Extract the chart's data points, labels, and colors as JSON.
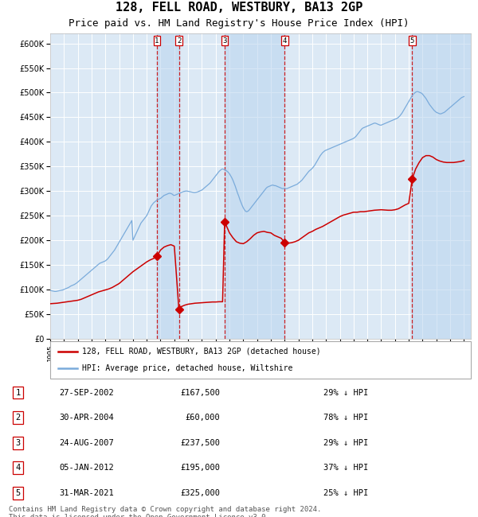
{
  "title": "128, FELL ROAD, WESTBURY, BA13 2GP",
  "subtitle": "Price paid vs. HM Land Registry's House Price Index (HPI)",
  "title_fontsize": 11,
  "subtitle_fontsize": 9,
  "xlim": [
    1995.0,
    2025.5
  ],
  "ylim": [
    0,
    620000
  ],
  "yticks": [
    0,
    50000,
    100000,
    150000,
    200000,
    250000,
    300000,
    350000,
    400000,
    450000,
    500000,
    550000,
    600000
  ],
  "background_color": "#ffffff",
  "plot_bg_color": "#dce9f5",
  "grid_color": "#ffffff",
  "hpi_color": "#7aabdb",
  "price_color": "#cc0000",
  "legend_label_price": "128, FELL ROAD, WESTBURY, BA13 2GP (detached house)",
  "legend_label_hpi": "HPI: Average price, detached house, Wiltshire",
  "transactions": [
    {
      "num": 1,
      "date_str": "27-SEP-2002",
      "date_x": 2002.74,
      "price": 167500,
      "pct": "29%"
    },
    {
      "num": 2,
      "date_str": "30-APR-2004",
      "date_x": 2004.33,
      "price": 60000,
      "pct": "78%"
    },
    {
      "num": 3,
      "date_str": "24-AUG-2007",
      "date_x": 2007.65,
      "price": 237500,
      "pct": "29%"
    },
    {
      "num": 4,
      "date_str": "05-JAN-2012",
      "date_x": 2012.01,
      "price": 195000,
      "pct": "37%"
    },
    {
      "num": 5,
      "date_str": "31-MAR-2021",
      "date_x": 2021.25,
      "price": 325000,
      "pct": "25%"
    }
  ],
  "footnote": "Contains HM Land Registry data © Crown copyright and database right 2024.\nThis data is licensed under the Open Government Licence v3.0.",
  "footnote_fontsize": 6.5,
  "hpi_data_x": [
    1995.0,
    1995.083,
    1995.167,
    1995.25,
    1995.333,
    1995.417,
    1995.5,
    1995.583,
    1995.667,
    1995.75,
    1995.833,
    1995.917,
    1996.0,
    1996.083,
    1996.167,
    1996.25,
    1996.333,
    1996.417,
    1996.5,
    1996.583,
    1996.667,
    1996.75,
    1996.833,
    1996.917,
    1997.0,
    1997.083,
    1997.167,
    1997.25,
    1997.333,
    1997.417,
    1997.5,
    1997.583,
    1997.667,
    1997.75,
    1997.833,
    1997.917,
    1998.0,
    1998.083,
    1998.167,
    1998.25,
    1998.333,
    1998.417,
    1998.5,
    1998.583,
    1998.667,
    1998.75,
    1998.833,
    1998.917,
    1999.0,
    1999.083,
    1999.167,
    1999.25,
    1999.333,
    1999.417,
    1999.5,
    1999.583,
    1999.667,
    1999.75,
    1999.833,
    1999.917,
    2000.0,
    2000.083,
    2000.167,
    2000.25,
    2000.333,
    2000.417,
    2000.5,
    2000.583,
    2000.667,
    2000.75,
    2000.833,
    2000.917,
    2001.0,
    2001.083,
    2001.167,
    2001.25,
    2001.333,
    2001.417,
    2001.5,
    2001.583,
    2001.667,
    2001.75,
    2001.833,
    2001.917,
    2002.0,
    2002.083,
    2002.167,
    2002.25,
    2002.333,
    2002.417,
    2002.5,
    2002.583,
    2002.667,
    2002.75,
    2002.833,
    2002.917,
    2003.0,
    2003.083,
    2003.167,
    2003.25,
    2003.333,
    2003.417,
    2003.5,
    2003.583,
    2003.667,
    2003.75,
    2003.833,
    2003.917,
    2004.0,
    2004.083,
    2004.167,
    2004.25,
    2004.333,
    2004.417,
    2004.5,
    2004.583,
    2004.667,
    2004.75,
    2004.833,
    2004.917,
    2005.0,
    2005.083,
    2005.167,
    2005.25,
    2005.333,
    2005.417,
    2005.5,
    2005.583,
    2005.667,
    2005.75,
    2005.833,
    2005.917,
    2006.0,
    2006.083,
    2006.167,
    2006.25,
    2006.333,
    2006.417,
    2006.5,
    2006.583,
    2006.667,
    2006.75,
    2006.833,
    2006.917,
    2007.0,
    2007.083,
    2007.167,
    2007.25,
    2007.333,
    2007.417,
    2007.5,
    2007.583,
    2007.667,
    2007.75,
    2007.833,
    2007.917,
    2008.0,
    2008.083,
    2008.167,
    2008.25,
    2008.333,
    2008.417,
    2008.5,
    2008.583,
    2008.667,
    2008.75,
    2008.833,
    2008.917,
    2009.0,
    2009.083,
    2009.167,
    2009.25,
    2009.333,
    2009.417,
    2009.5,
    2009.583,
    2009.667,
    2009.75,
    2009.833,
    2009.917,
    2010.0,
    2010.083,
    2010.167,
    2010.25,
    2010.333,
    2010.417,
    2010.5,
    2010.583,
    2010.667,
    2010.75,
    2010.833,
    2010.917,
    2011.0,
    2011.083,
    2011.167,
    2011.25,
    2011.333,
    2011.417,
    2011.5,
    2011.583,
    2011.667,
    2011.75,
    2011.833,
    2011.917,
    2012.0,
    2012.083,
    2012.167,
    2012.25,
    2012.333,
    2012.417,
    2012.5,
    2012.583,
    2012.667,
    2012.75,
    2012.833,
    2012.917,
    2013.0,
    2013.083,
    2013.167,
    2013.25,
    2013.333,
    2013.417,
    2013.5,
    2013.583,
    2013.667,
    2013.75,
    2013.833,
    2013.917,
    2014.0,
    2014.083,
    2014.167,
    2014.25,
    2014.333,
    2014.417,
    2014.5,
    2014.583,
    2014.667,
    2014.75,
    2014.833,
    2014.917,
    2015.0,
    2015.083,
    2015.167,
    2015.25,
    2015.333,
    2015.417,
    2015.5,
    2015.583,
    2015.667,
    2015.75,
    2015.833,
    2015.917,
    2016.0,
    2016.083,
    2016.167,
    2016.25,
    2016.333,
    2016.417,
    2016.5,
    2016.583,
    2016.667,
    2016.75,
    2016.833,
    2016.917,
    2017.0,
    2017.083,
    2017.167,
    2017.25,
    2017.333,
    2017.417,
    2017.5,
    2017.583,
    2017.667,
    2017.75,
    2017.833,
    2017.917,
    2018.0,
    2018.083,
    2018.167,
    2018.25,
    2018.333,
    2018.417,
    2018.5,
    2018.583,
    2018.667,
    2018.75,
    2018.833,
    2018.917,
    2019.0,
    2019.083,
    2019.167,
    2019.25,
    2019.333,
    2019.417,
    2019.5,
    2019.583,
    2019.667,
    2019.75,
    2019.833,
    2019.917,
    2020.0,
    2020.083,
    2020.167,
    2020.25,
    2020.333,
    2020.417,
    2020.5,
    2020.583,
    2020.667,
    2020.75,
    2020.833,
    2020.917,
    2021.0,
    2021.083,
    2021.167,
    2021.25,
    2021.333,
    2021.417,
    2021.5,
    2021.583,
    2021.667,
    2021.75,
    2021.833,
    2021.917,
    2022.0,
    2022.083,
    2022.167,
    2022.25,
    2022.333,
    2022.417,
    2022.5,
    2022.583,
    2022.667,
    2022.75,
    2022.833,
    2022.917,
    2023.0,
    2023.083,
    2023.167,
    2023.25,
    2023.333,
    2023.417,
    2023.5,
    2023.583,
    2023.667,
    2023.75,
    2023.833,
    2023.917,
    2024.0,
    2024.083,
    2024.167,
    2024.25,
    2024.333,
    2024.417,
    2024.5,
    2024.583,
    2024.667,
    2024.75,
    2024.833,
    2024.917,
    2025.0
  ],
  "hpi_data_y": [
    98000,
    97500,
    97000,
    96500,
    96000,
    96000,
    96500,
    97000,
    97500,
    98000,
    98500,
    99000,
    100000,
    101000,
    102000,
    103000,
    104000,
    105500,
    107000,
    108000,
    109000,
    110000,
    111500,
    113000,
    115000,
    117000,
    119000,
    121000,
    123000,
    125000,
    127000,
    129000,
    131000,
    133000,
    135000,
    137000,
    139000,
    141000,
    143000,
    145000,
    147000,
    149000,
    151000,
    153000,
    154000,
    155000,
    156000,
    157000,
    158000,
    160000,
    162000,
    165000,
    168000,
    171000,
    174000,
    177000,
    180000,
    184000,
    188000,
    192000,
    196000,
    200000,
    204000,
    208000,
    212000,
    216000,
    220000,
    224000,
    228000,
    232000,
    236000,
    240000,
    200000,
    205000,
    210000,
    215000,
    220000,
    225000,
    230000,
    235000,
    238000,
    241000,
    244000,
    247000,
    250000,
    255000,
    260000,
    265000,
    270000,
    273000,
    276000,
    278000,
    280000,
    282000,
    283000,
    284000,
    285000,
    287000,
    289000,
    291000,
    292000,
    293000,
    294000,
    295000,
    295500,
    295000,
    294000,
    292000,
    291000,
    292000,
    293000,
    294000,
    295000,
    296000,
    297000,
    298000,
    299000,
    299500,
    300000,
    300000,
    299500,
    299000,
    298500,
    298000,
    297500,
    297000,
    297000,
    297500,
    298000,
    299000,
    300000,
    301000,
    302000,
    304000,
    306000,
    308000,
    310000,
    312000,
    314000,
    316000,
    319000,
    322000,
    325000,
    328000,
    331000,
    334000,
    337000,
    340000,
    342000,
    344000,
    345000,
    344000,
    343000,
    342000,
    340000,
    338000,
    335000,
    331000,
    327000,
    322000,
    316000,
    310000,
    303000,
    296000,
    290000,
    283000,
    277000,
    271000,
    266000,
    262000,
    259000,
    258000,
    259000,
    261000,
    264000,
    267000,
    270000,
    273000,
    276000,
    279000,
    282000,
    285000,
    288000,
    291000,
    294000,
    297000,
    300000,
    303000,
    306000,
    308000,
    309000,
    310000,
    311000,
    312000,
    312000,
    311000,
    311000,
    310000,
    309000,
    308000,
    307000,
    306000,
    305000,
    305000,
    305000,
    305000,
    305000,
    306000,
    307000,
    308000,
    309000,
    310000,
    311000,
    312000,
    313000,
    314000,
    316000,
    318000,
    320000,
    322000,
    325000,
    328000,
    331000,
    334000,
    337000,
    340000,
    342000,
    344000,
    346000,
    349000,
    352000,
    356000,
    360000,
    364000,
    368000,
    372000,
    375000,
    378000,
    380000,
    382000,
    383000,
    384000,
    385000,
    386000,
    387000,
    388000,
    389000,
    390000,
    391000,
    392000,
    393000,
    394000,
    395000,
    396000,
    397000,
    398000,
    399000,
    400000,
    401000,
    402000,
    403000,
    404000,
    405000,
    406000,
    407000,
    409000,
    411000,
    414000,
    417000,
    420000,
    423000,
    426000,
    428000,
    429000,
    430000,
    431000,
    432000,
    433000,
    434000,
    435000,
    436000,
    437000,
    438000,
    438000,
    437000,
    436000,
    435000,
    434000,
    434000,
    435000,
    436000,
    437000,
    438000,
    439000,
    440000,
    441000,
    442000,
    443000,
    444000,
    445000,
    446000,
    447000,
    448000,
    450000,
    452000,
    455000,
    458000,
    462000,
    466000,
    470000,
    474000,
    478000,
    482000,
    486000,
    490000,
    494000,
    497000,
    499000,
    501000,
    502000,
    502000,
    501000,
    500000,
    499000,
    497000,
    494000,
    491000,
    488000,
    484000,
    480000,
    476000,
    473000,
    470000,
    467000,
    464000,
    462000,
    460000,
    459000,
    458000,
    457000,
    457000,
    458000,
    459000,
    460000,
    462000,
    464000,
    466000,
    468000,
    470000,
    472000,
    474000,
    476000,
    478000,
    480000,
    482000,
    484000,
    486000,
    488000,
    490000,
    491000,
    492000
  ],
  "price_data_x": [
    1995.0,
    1995.25,
    1995.5,
    1995.75,
    1996.0,
    1996.25,
    1996.5,
    1996.75,
    1997.0,
    1997.25,
    1997.5,
    1997.75,
    1998.0,
    1998.25,
    1998.5,
    1998.75,
    1999.0,
    1999.25,
    1999.5,
    1999.75,
    2000.0,
    2000.25,
    2000.5,
    2000.75,
    2001.0,
    2001.25,
    2001.5,
    2001.75,
    2002.0,
    2002.25,
    2002.5,
    2002.74,
    2003.0,
    2003.25,
    2003.5,
    2003.75,
    2004.0,
    2004.33,
    2004.5,
    2004.75,
    2005.0,
    2005.25,
    2005.5,
    2005.75,
    2006.0,
    2006.25,
    2006.5,
    2006.75,
    2007.0,
    2007.25,
    2007.5,
    2007.65,
    2008.0,
    2008.25,
    2008.5,
    2008.75,
    2009.0,
    2009.25,
    2009.5,
    2009.75,
    2010.0,
    2010.25,
    2010.5,
    2010.75,
    2011.0,
    2011.25,
    2011.5,
    2011.75,
    2012.01,
    2012.25,
    2012.5,
    2012.75,
    2013.0,
    2013.25,
    2013.5,
    2013.75,
    2014.0,
    2014.25,
    2014.5,
    2014.75,
    2015.0,
    2015.25,
    2015.5,
    2015.75,
    2016.0,
    2016.25,
    2016.5,
    2016.75,
    2017.0,
    2017.25,
    2017.5,
    2017.75,
    2018.0,
    2018.25,
    2018.5,
    2018.75,
    2019.0,
    2019.25,
    2019.5,
    2019.75,
    2020.0,
    2020.25,
    2020.5,
    2020.75,
    2021.0,
    2021.25,
    2021.5,
    2021.75,
    2022.0,
    2022.25,
    2022.5,
    2022.75,
    2023.0,
    2023.25,
    2023.5,
    2023.75,
    2024.0,
    2024.25,
    2024.5,
    2024.75,
    2025.0
  ],
  "price_data_y": [
    71000,
    71500,
    72000,
    73000,
    74000,
    75000,
    76000,
    77000,
    78000,
    80000,
    83000,
    86000,
    89000,
    92000,
    95000,
    97000,
    99000,
    101000,
    104000,
    108000,
    112000,
    118000,
    124000,
    130000,
    136000,
    141000,
    146000,
    151000,
    156000,
    160000,
    163000,
    167500,
    180000,
    186000,
    189000,
    191000,
    188000,
    60000,
    65000,
    68000,
    70000,
    71000,
    72000,
    72500,
    73000,
    73500,
    74000,
    74500,
    74500,
    75000,
    75000,
    237500,
    215000,
    205000,
    197000,
    194000,
    193000,
    197000,
    203000,
    210000,
    215000,
    217000,
    218000,
    216000,
    215000,
    210000,
    207000,
    204000,
    195000,
    194000,
    195000,
    197000,
    200000,
    205000,
    210000,
    215000,
    218000,
    222000,
    225000,
    228000,
    232000,
    236000,
    240000,
    244000,
    248000,
    251000,
    253000,
    255000,
    257000,
    257000,
    258000,
    258000,
    259000,
    260000,
    261000,
    261500,
    262000,
    261500,
    261000,
    261000,
    262000,
    264000,
    268000,
    272000,
    275000,
    325000,
    345000,
    358000,
    368000,
    372000,
    372000,
    369000,
    364000,
    361000,
    359000,
    358000,
    358000,
    358000,
    359000,
    360000,
    362000
  ]
}
